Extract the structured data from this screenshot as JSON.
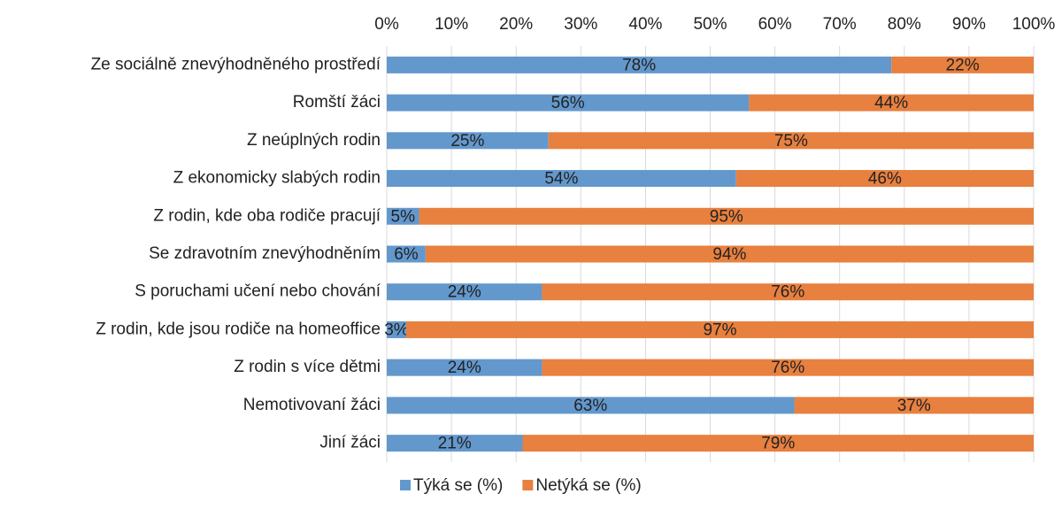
{
  "chart_data": {
    "type": "stacked_barh",
    "categories": [
      "Ze sociálně znevýhodněného prostředí",
      "Romští žáci",
      "Z neúplných rodin",
      "Z ekonomicky slabých rodin",
      "Z rodin, kde oba rodiče pracují",
      "Se zdravotním znevýhodněním",
      "S poruchami učení nebo chování",
      "Z rodin, kde jsou rodiče na homeoffice",
      "Z rodin s více dětmi",
      "Nemotivovaní žáci",
      "Jiní žáci"
    ],
    "series": [
      {
        "name": "Týká se (%)",
        "color": "#6398cd",
        "values": [
          78,
          56,
          25,
          54,
          5,
          6,
          24,
          3,
          24,
          63,
          21
        ],
        "value_labels": [
          "78%",
          "56%",
          "25%",
          "54%",
          "5%",
          "6%",
          "24%",
          "3%",
          "24%",
          "63%",
          "21%"
        ]
      },
      {
        "name": "Netýká se (%)",
        "color": "#e8803f",
        "values": [
          22,
          44,
          75,
          46,
          95,
          94,
          76,
          97,
          76,
          37,
          79
        ],
        "value_labels": [
          "22%",
          "44%",
          "75%",
          "46%",
          "95%",
          "94%",
          "76%",
          "97%",
          "76%",
          "37%",
          "79%"
        ]
      }
    ],
    "xlim": [
      0,
      100
    ],
    "xticks": [
      {
        "value": 0,
        "label": "0%"
      },
      {
        "value": 10,
        "label": "10%"
      },
      {
        "value": 20,
        "label": "20%"
      },
      {
        "value": 30,
        "label": "30%"
      },
      {
        "value": 40,
        "label": "40%"
      },
      {
        "value": 50,
        "label": "50%"
      },
      {
        "value": 60,
        "label": "60%"
      },
      {
        "value": 70,
        "label": "70%"
      },
      {
        "value": 80,
        "label": "80%"
      },
      {
        "value": 90,
        "label": "90%"
      },
      {
        "value": 100,
        "label": "100%"
      }
    ],
    "grid": true,
    "legend": "bottom"
  }
}
